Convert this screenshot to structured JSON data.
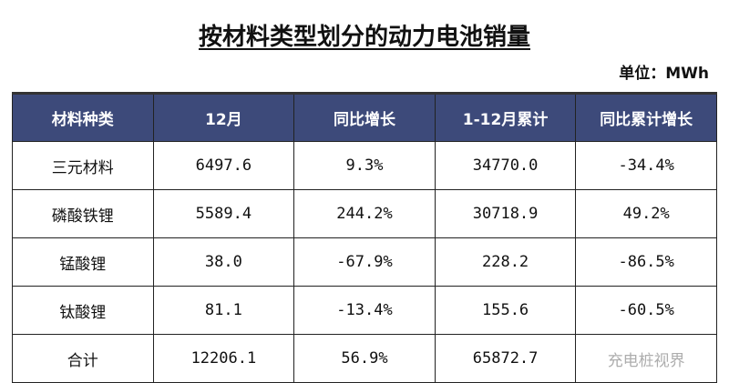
{
  "title": "按材料类型划分的动力电池销量",
  "unit": "单位：MWh",
  "columns": [
    "材料种类",
    "12月",
    "同比增长",
    "1-12月累计",
    "同比累计增长"
  ],
  "rows": [
    [
      "三元材料",
      "6497.6",
      "9.3%",
      "34770.0",
      "-34.4%"
    ],
    [
      "磷酸铁锂",
      "5589.4",
      "244.2%",
      "30718.9",
      "49.2%"
    ],
    [
      "锰酸锂",
      "38.0",
      "-67.9%",
      "228.2",
      "-86.5%"
    ],
    [
      "钛酸锂",
      "81.1",
      "-13.4%",
      "155.6",
      "-60.5%"
    ],
    [
      "合计",
      "12206.1",
      "56.9%",
      "65872.7",
      ""
    ]
  ],
  "watermark": "充电桩视界",
  "colors": {
    "header_bg": "#3d4a7a"
  }
}
